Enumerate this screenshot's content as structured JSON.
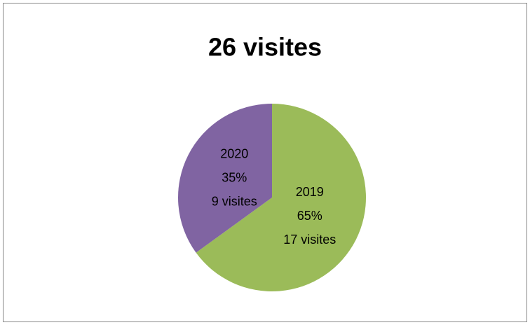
{
  "chart_data": {
    "type": "pie",
    "title": "26 visites",
    "categories": [
      "2019",
      "2020"
    ],
    "values": [
      65,
      35
    ],
    "value_labels": [
      "65%",
      "35%"
    ],
    "count_labels": [
      "17 visites",
      "9 visites"
    ],
    "colors": [
      "#9bbb59",
      "#8064a2"
    ]
  }
}
